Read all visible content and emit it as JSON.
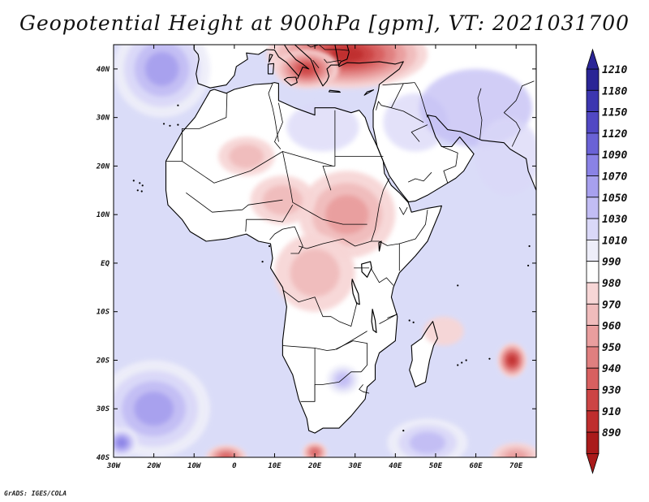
{
  "title": "Geopotential Height at 900hPa [gpm], VT: 2021031700",
  "credit": "GrADS: IGES/COLA",
  "map": {
    "lon_range": [
      -30,
      75
    ],
    "lat_range": [
      -40,
      45
    ],
    "x_ticks": [
      {
        "lon": -30,
        "label": "30W"
      },
      {
        "lon": -20,
        "label": "20W"
      },
      {
        "lon": -10,
        "label": "10W"
      },
      {
        "lon": 0,
        "label": "0"
      },
      {
        "lon": 10,
        "label": "10E"
      },
      {
        "lon": 20,
        "label": "20E"
      },
      {
        "lon": 30,
        "label": "30E"
      },
      {
        "lon": 40,
        "label": "40E"
      },
      {
        "lon": 50,
        "label": "50E"
      },
      {
        "lon": 60,
        "label": "60E"
      },
      {
        "lon": 70,
        "label": "70E"
      }
    ],
    "y_ticks": [
      {
        "lat": 40,
        "label": "40N"
      },
      {
        "lat": 30,
        "label": "30N"
      },
      {
        "lat": 20,
        "label": "20N"
      },
      {
        "lat": 10,
        "label": "10N"
      },
      {
        "lat": 0,
        "label": "EQ"
      },
      {
        "lat": -10,
        "label": "10S"
      },
      {
        "lat": -20,
        "label": "20S"
      },
      {
        "lat": -30,
        "label": "30S"
      },
      {
        "lat": -40,
        "label": "40S"
      }
    ]
  },
  "colorbar": {
    "levels": [
      "1210",
      "1180",
      "1150",
      "1120",
      "1090",
      "1070",
      "1050",
      "1030",
      "1010",
      "990",
      "980",
      "970",
      "960",
      "950",
      "940",
      "930",
      "910",
      "890"
    ],
    "colors": [
      "#2a2596",
      "#3c36b0",
      "#5148c4",
      "#6a62d6",
      "#8a82e6",
      "#a7a0ee",
      "#c2bdf4",
      "#dad8f8",
      "#eeeef9",
      "#ffffff",
      "#f7d6d6",
      "#f0bcbc",
      "#e99e9e",
      "#e07f7f",
      "#d86060",
      "#cc4545",
      "#bf2e2e",
      "#aa1b1b"
    ]
  },
  "colors": {
    "ocean_base": "#dadcf8",
    "land_base": "#ffffff",
    "coast": "#000000"
  },
  "map_features": {
    "anomalies": [
      {
        "name": "europe-high",
        "lon": 28,
        "lat": 43,
        "lon_r": 20,
        "lat_r": 7,
        "level": 16
      },
      {
        "name": "greece-low",
        "lon": 18,
        "lat": 40,
        "lon_r": 8,
        "lat_r": 4,
        "level": 15
      },
      {
        "name": "east-africa-low",
        "lon": 28,
        "lat": 10,
        "lon_r": 12,
        "lat_r": 9,
        "level": 12
      },
      {
        "name": "chad-low",
        "lon": 12,
        "lat": 13,
        "lon_r": 8,
        "lat_r": 5,
        "level": 11
      },
      {
        "name": "congo-low",
        "lon": 20,
        "lat": -2,
        "lon_r": 10,
        "lat_r": 8,
        "level": 11
      },
      {
        "name": "sahara-low",
        "lon": 3,
        "lat": 22,
        "lon_r": 7,
        "lat_r": 4,
        "level": 11
      },
      {
        "name": "indian-ocean-low",
        "lon": 69,
        "lat": -20,
        "lon_r": 3.5,
        "lat_r": 3.5,
        "level": 16
      },
      {
        "name": "mascarene-low",
        "lon": 52,
        "lat": -14,
        "lon_r": 5,
        "lat_r": 3,
        "level": 10
      },
      {
        "name": "cape-low",
        "lon": 20,
        "lat": -39,
        "lon_r": 3,
        "lat_r": 2,
        "level": 14
      },
      {
        "name": "south-atlantic-low",
        "lon": -2,
        "lat": -40,
        "lon_r": 5,
        "lat_r": 2.5,
        "level": 14
      },
      {
        "name": "southern-ocean-low",
        "lon": 70,
        "lat": -40,
        "lon_r": 6,
        "lat_r": 3,
        "level": 12
      },
      {
        "name": "north-atlantic-high",
        "lon": -18,
        "lat": 40,
        "lon_r": 12,
        "lat_r": 10,
        "level": 5
      },
      {
        "name": "south-atlantic-high",
        "lon": -20,
        "lat": -30,
        "lon_r": 14,
        "lat_r": 10,
        "level": 5
      },
      {
        "name": "south-africa-high",
        "lon": 27,
        "lat": -24,
        "lon_r": 4,
        "lat_r": 3,
        "level": 6
      },
      {
        "name": "southwest-high",
        "lon": -28,
        "lat": -37,
        "lon_r": 4,
        "lat_r": 3,
        "level": 4
      },
      {
        "name": "south-indian-high",
        "lon": 48,
        "lat": -37,
        "lon_r": 10,
        "lat_r": 5,
        "level": 6
      }
    ]
  }
}
